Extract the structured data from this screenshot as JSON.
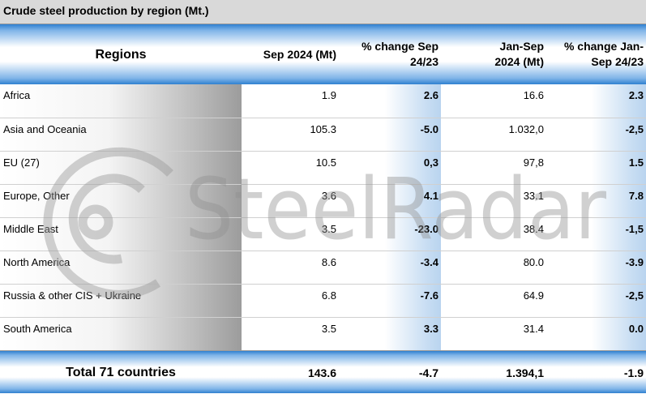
{
  "title": "Crude steel production by region (Mt.)",
  "headers": {
    "region": "Regions",
    "sep": "Sep 2024 (Mt)",
    "sep_change_l1": "% change Sep",
    "sep_change_l2": "24/23",
    "ytd_l1": "Jan-Sep",
    "ytd_l2": "2024 (Mt)",
    "ytd_change_l1": "% change Jan-",
    "ytd_change_l2": "Sep 24/23"
  },
  "rows": [
    {
      "region": "Africa",
      "sep": "1.9",
      "sep_change": "2.6",
      "ytd": "16.6",
      "ytd_change": "2.3"
    },
    {
      "region": "Asia and Oceania",
      "sep": "105.3",
      "sep_change": "-5.0",
      "ytd": "1.032,0",
      "ytd_change": "-2,5"
    },
    {
      "region": "EU (27)",
      "sep": "10.5",
      "sep_change": "0,3",
      "ytd": "97,8",
      "ytd_change": "1.5"
    },
    {
      "region": "Europe, Other",
      "sep": "3.6",
      "sep_change": "4.1",
      "ytd": "33.1",
      "ytd_change": "7.8"
    },
    {
      "region": "Middle East",
      "sep": "3.5",
      "sep_change": "-23.0",
      "ytd": "38.4",
      "ytd_change": "-1,5"
    },
    {
      "region": "North America",
      "sep": "8.6",
      "sep_change": "-3.4",
      "ytd": "80.0",
      "ytd_change": "-3.9"
    },
    {
      "region": "Russia & other CIS + Ukraine",
      "sep": "6.8",
      "sep_change": "-7.6",
      "ytd": "64.9",
      "ytd_change": "-2,5"
    },
    {
      "region": "South America",
      "sep": "3.5",
      "sep_change": "3.3",
      "ytd": "31.4",
      "ytd_change": "0.0"
    }
  ],
  "total": {
    "region": "Total 71 countries",
    "sep": "143.6",
    "sep_change": "-4.7",
    "ytd": "1.394,1",
    "ytd_change": "-1.9"
  },
  "watermark": "SteelRadar",
  "colors": {
    "header_blue": "#2f80d0",
    "title_grey": "#d9d9d9"
  }
}
